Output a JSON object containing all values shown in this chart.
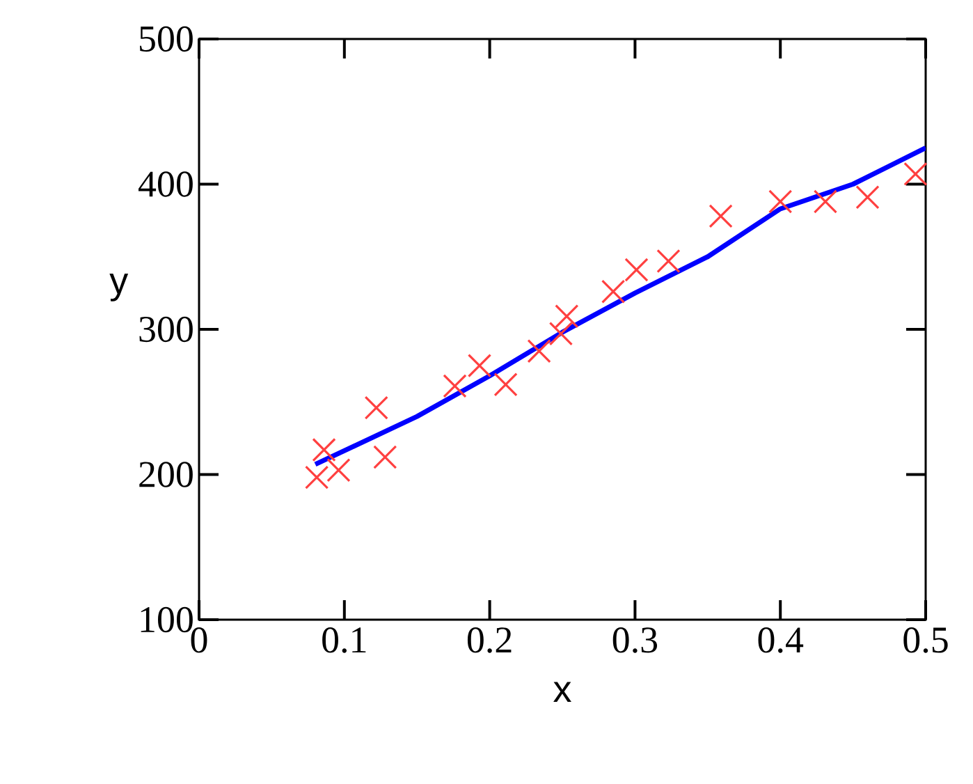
{
  "chart_data": {
    "type": "scatter",
    "xlabel": "x",
    "ylabel": "y",
    "xlim": [
      0,
      0.5
    ],
    "ylim": [
      100,
      500
    ],
    "xticks": [
      0,
      0.1,
      0.2,
      0.3,
      0.4,
      0.5
    ],
    "yticks": [
      100,
      200,
      300,
      400,
      500
    ],
    "series": [
      {
        "color": "#ff4040",
        "marker": "cross",
        "x": [
          0.081,
          0.096,
          0.086,
          0.122,
          0.128,
          0.176,
          0.193,
          0.211,
          0.234,
          0.249,
          0.253,
          0.285,
          0.301,
          0.323,
          0.359,
          0.4,
          0.431,
          0.46,
          0.493
        ],
        "values": [
          198,
          203,
          217,
          246,
          212,
          261,
          275,
          262,
          285,
          297,
          309,
          326,
          341,
          347,
          378,
          388,
          388,
          391,
          407
        ]
      },
      {
        "type": "line",
        "color": "#0000ff",
        "marker": "none",
        "line_style": "solid",
        "x": [
          0.08,
          0.15,
          0.2,
          0.25,
          0.3,
          0.35,
          0.4,
          0.45,
          0.5
        ],
        "values": [
          207,
          240,
          268,
          298,
          325,
          350,
          383,
          400,
          425
        ]
      }
    ]
  }
}
